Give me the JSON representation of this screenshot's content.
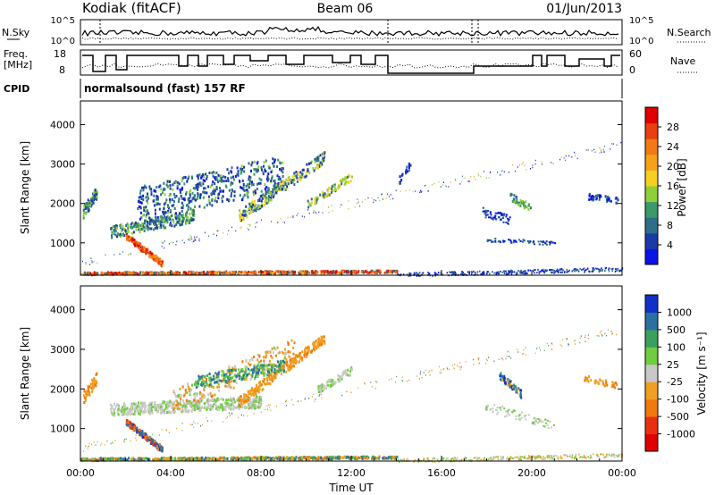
{
  "header": {
    "station": "Kodiak (fitACF)",
    "beam": "Beam 06",
    "date": "01/Jun/2013"
  },
  "noise_panel": {
    "left_label": "N.Sky",
    "right_label": "N.Search",
    "left_ticks": [
      "10^5",
      "10^0"
    ],
    "right_ticks": [
      "10^5",
      "10^0"
    ]
  },
  "freq_panel": {
    "left_label_top": "Freq.",
    "left_label_bottom": "[MHz]",
    "left_ticks": [
      "18",
      "8"
    ],
    "right_label": "Nave",
    "right_ticks": [
      "60",
      "0"
    ]
  },
  "cpid": {
    "label": "CPID",
    "value": "normalsound (fast) 157 RF"
  },
  "chart_data": [
    {
      "type": "heatmap",
      "ylabel": "Slant Range [km]",
      "colorbar_label": "Power [dB]",
      "colorbar_ticks": [
        4,
        8,
        12,
        16,
        20,
        24,
        28
      ],
      "colorbar_colors": [
        "#0a14e6",
        "#1a3aa8",
        "#2e6e8a",
        "#3a9a6a",
        "#8fcf3a",
        "#f5d020",
        "#f5a21a",
        "#f07a15",
        "#e8400e",
        "#e00000"
      ],
      "yticks": [
        1000,
        2000,
        3000,
        4000
      ],
      "ylim": [
        180,
        4600
      ],
      "xlim": [
        0,
        24
      ],
      "grid": false
    },
    {
      "type": "heatmap",
      "ylabel": "Slant Range [km]",
      "colorbar_label": "Velocity [m s⁻¹]",
      "colorbar_ticks": [
        1000,
        500,
        100,
        25,
        -25,
        -100,
        -500,
        -1000
      ],
      "colorbar_colors": [
        "#1030c8",
        "#2a70a0",
        "#3aa060",
        "#70cc40",
        "#c8c8c8",
        "#f0a020",
        "#f07a10",
        "#e83010",
        "#e00000"
      ],
      "yticks": [
        1000,
        2000,
        3000,
        4000
      ],
      "ylim": [
        180,
        4600
      ],
      "xlim": [
        0,
        24
      ],
      "grid": false
    }
  ],
  "xaxis": {
    "label": "Time UT",
    "ticks": [
      "00:00",
      "04:00",
      "08:00",
      "12:00",
      "16:00",
      "20:00",
      "00:00"
    ]
  }
}
